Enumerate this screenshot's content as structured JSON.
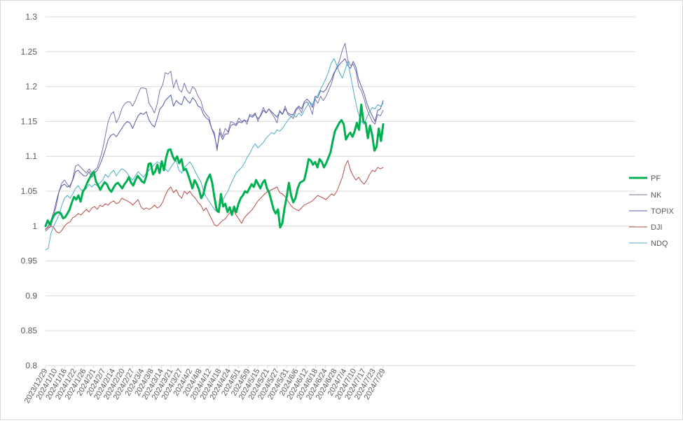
{
  "chart_data": {
    "type": "line",
    "title": "",
    "xlabel": "",
    "ylabel": "",
    "ylim": [
      0.8,
      1.3
    ],
    "y_ticks": [
      "0.8",
      "0.85",
      "0.9",
      "0.95",
      "1",
      "1.05",
      "1.1",
      "1.15",
      "1.2",
      "1.25",
      "1.3"
    ],
    "grid": "horizontal",
    "legend_position": "right",
    "x_tick_labels": [
      "2023/12/29",
      "2024/1/10",
      "2024/1/16",
      "2024/1/22",
      "2024/1/26",
      "2024/2/1",
      "2024/2/7",
      "2024/2/14",
      "2024/2/20",
      "2024/2/27",
      "2024/3/4",
      "2024/3/8",
      "2024/3/14",
      "2024/3/21",
      "2024/3/27",
      "2024/4/2",
      "2024/4/8",
      "2024/4/12",
      "2024/4/18",
      "2024/4/24",
      "2024/5/1",
      "2024/5/9",
      "2024/5/15",
      "2024/5/21",
      "2024/5/27",
      "2024/5/31",
      "2024/6/6",
      "2024/6/12",
      "2024/6/18",
      "2024/6/24",
      "2024/6/28",
      "2024/7/4",
      "2024/7/10",
      "2024/7/17",
      "2024/7/23",
      "2024/7/29"
    ],
    "series": [
      {
        "name": "PF",
        "color": "#00b050",
        "width": 3,
        "values": [
          1.0,
          1.008,
          1.002,
          1.01,
          1.016,
          1.019,
          1.02,
          1.018,
          1.011,
          1.013,
          1.018,
          1.024,
          1.034,
          1.042,
          1.038,
          1.044,
          1.035,
          1.049,
          1.054,
          1.062,
          1.068,
          1.074,
          1.078,
          1.064,
          1.058,
          1.052,
          1.058,
          1.063,
          1.06,
          1.053,
          1.049,
          1.055,
          1.06,
          1.062,
          1.058,
          1.054,
          1.06,
          1.064,
          1.07,
          1.062,
          1.058,
          1.066,
          1.072,
          1.068,
          1.064,
          1.062,
          1.072,
          1.089,
          1.09,
          1.074,
          1.078,
          1.088,
          1.076,
          1.093,
          1.08,
          1.098,
          1.109,
          1.11,
          1.1,
          1.094,
          1.1,
          1.09,
          1.096,
          1.08,
          1.082,
          1.074,
          1.064,
          1.054,
          1.066,
          1.06,
          1.052,
          1.04,
          1.046,
          1.06,
          1.068,
          1.074,
          1.062,
          1.042,
          1.024,
          1.02,
          1.046,
          1.028,
          1.032,
          1.02,
          1.027,
          1.016,
          1.028,
          1.02,
          1.032,
          1.04,
          1.044,
          1.05,
          1.048,
          1.054,
          1.06,
          1.056,
          1.066,
          1.06,
          1.054,
          1.062,
          1.066,
          1.054,
          1.048,
          1.036,
          1.024,
          1.018,
          1.024,
          0.998,
          1.004,
          1.026,
          1.042,
          1.062,
          1.044,
          1.034,
          1.04,
          1.054,
          1.062,
          1.064,
          1.066,
          1.08,
          1.096,
          1.094,
          1.088,
          1.092,
          1.084,
          1.096,
          1.092,
          1.084,
          1.09,
          1.098,
          1.106,
          1.122,
          1.136,
          1.142,
          1.148,
          1.152,
          1.146,
          1.124,
          1.13,
          1.134,
          1.128,
          1.136,
          1.148,
          1.138,
          1.174,
          1.15,
          1.148,
          1.126,
          1.144,
          1.13,
          1.108,
          1.114,
          1.14,
          1.122,
          1.146
        ]
      },
      {
        "name": "NK",
        "color": "#7f6faa",
        "width": 1,
        "values": [
          0.993,
          0.996,
          1.0,
          1.015,
          1.03,
          1.05,
          1.062,
          1.066,
          1.06,
          1.055,
          1.068,
          1.086,
          1.088,
          1.084,
          1.08,
          1.076,
          1.082,
          1.076,
          1.08,
          1.084,
          1.096,
          1.11,
          1.13,
          1.15,
          1.16,
          1.164,
          1.148,
          1.156,
          1.168,
          1.175,
          1.178,
          1.178,
          1.172,
          1.18,
          1.19,
          1.198,
          1.198,
          1.197,
          1.176,
          1.17,
          1.162,
          1.175,
          1.195,
          1.202,
          1.22,
          1.218,
          1.222,
          1.198,
          1.21,
          1.196,
          1.192,
          1.205,
          1.194,
          1.19,
          1.2,
          1.196,
          1.186,
          1.18,
          1.166,
          1.16,
          1.156,
          1.14,
          1.134,
          1.108,
          1.14,
          1.128,
          1.14,
          1.135,
          1.15,
          1.148,
          1.146,
          1.155,
          1.15,
          1.152,
          1.146,
          1.16,
          1.158,
          1.162,
          1.15,
          1.16,
          1.17,
          1.162,
          1.168,
          1.162,
          1.156,
          1.148,
          1.166,
          1.16,
          1.172,
          1.16,
          1.158,
          1.154,
          1.166,
          1.17,
          1.162,
          1.176,
          1.178,
          1.172,
          1.16,
          1.182,
          1.176,
          1.186,
          1.18,
          1.186,
          1.195,
          1.204,
          1.218,
          1.228,
          1.238,
          1.252,
          1.262,
          1.238,
          1.23,
          1.232,
          1.222,
          1.2,
          1.194,
          1.182,
          1.168,
          1.158,
          1.15,
          1.146,
          1.16,
          1.158,
          1.166
        ]
      },
      {
        "name": "TOPIX",
        "color": "#4f5fa8",
        "width": 1,
        "values": [
          0.995,
          1.0,
          1.008,
          1.02,
          1.036,
          1.05,
          1.058,
          1.06,
          1.056,
          1.058,
          1.066,
          1.078,
          1.08,
          1.076,
          1.072,
          1.072,
          1.078,
          1.07,
          1.076,
          1.08,
          1.088,
          1.098,
          1.11,
          1.124,
          1.13,
          1.132,
          1.128,
          1.134,
          1.14,
          1.146,
          1.15,
          1.148,
          1.14,
          1.15,
          1.158,
          1.162,
          1.16,
          1.164,
          1.152,
          1.146,
          1.142,
          1.154,
          1.168,
          1.172,
          1.18,
          1.184,
          1.188,
          1.172,
          1.18,
          1.176,
          1.174,
          1.186,
          1.18,
          1.176,
          1.184,
          1.18,
          1.172,
          1.17,
          1.16,
          1.155,
          1.152,
          1.14,
          1.13,
          1.112,
          1.134,
          1.124,
          1.132,
          1.132,
          1.144,
          1.146,
          1.144,
          1.15,
          1.148,
          1.152,
          1.15,
          1.158,
          1.156,
          1.16,
          1.154,
          1.158,
          1.166,
          1.162,
          1.168,
          1.164,
          1.16,
          1.156,
          1.164,
          1.16,
          1.168,
          1.162,
          1.16,
          1.16,
          1.168,
          1.172,
          1.168,
          1.178,
          1.182,
          1.178,
          1.17,
          1.186,
          1.184,
          1.194,
          1.192,
          1.196,
          1.204,
          1.21,
          1.22,
          1.226,
          1.232,
          1.236,
          1.24,
          1.23,
          1.226,
          1.236,
          1.228,
          1.21,
          1.2,
          1.19,
          1.176,
          1.166,
          1.158,
          1.15,
          1.166,
          1.168,
          1.18
        ]
      },
      {
        "name": "DJI",
        "color": "#b54d49",
        "width": 1,
        "values": [
          0.996,
          0.998,
          1.0,
          0.998,
          0.992,
          0.99,
          0.994,
          1.0,
          1.004,
          1.006,
          1.012,
          1.014,
          1.018,
          1.016,
          1.02,
          1.024,
          1.02,
          1.026,
          1.028,
          1.024,
          1.03,
          1.028,
          1.032,
          1.03,
          1.034,
          1.036,
          1.032,
          1.034,
          1.04,
          1.038,
          1.036,
          1.034,
          1.03,
          1.034,
          1.038,
          1.028,
          1.024,
          1.026,
          1.024,
          1.026,
          1.03,
          1.026,
          1.028,
          1.034,
          1.044,
          1.052,
          1.056,
          1.048,
          1.052,
          1.044,
          1.04,
          1.05,
          1.046,
          1.05,
          1.044,
          1.04,
          1.034,
          1.03,
          1.022,
          1.026,
          1.018,
          1.01,
          1.002,
          1.0,
          1.004,
          1.008,
          1.01,
          1.016,
          1.02,
          1.024,
          1.016,
          1.01,
          1.004,
          1.012,
          1.016,
          1.02,
          1.024,
          1.03,
          1.036,
          1.04,
          1.044,
          1.048,
          1.05,
          1.052,
          1.054,
          1.056,
          1.048,
          1.046,
          1.042,
          1.036,
          1.03,
          1.026,
          1.024,
          1.022,
          1.026,
          1.03,
          1.032,
          1.034,
          1.036,
          1.04,
          1.044,
          1.042,
          1.04,
          1.038,
          1.042,
          1.046,
          1.044,
          1.05,
          1.06,
          1.07,
          1.086,
          1.094,
          1.08,
          1.072,
          1.066,
          1.07,
          1.064,
          1.06,
          1.066,
          1.074,
          1.08,
          1.078,
          1.084,
          1.082,
          1.084
        ]
      },
      {
        "name": "NDQ",
        "color": "#4bacc6",
        "width": 1,
        "values": [
          0.966,
          0.968,
          0.99,
          1.0,
          1.008,
          1.016,
          1.03,
          1.04,
          1.044,
          1.04,
          1.046,
          1.054,
          1.058,
          1.052,
          1.05,
          1.054,
          1.06,
          1.056,
          1.06,
          1.058,
          1.062,
          1.066,
          1.074,
          1.07,
          1.076,
          1.08,
          1.072,
          1.078,
          1.082,
          1.08,
          1.076,
          1.07,
          1.066,
          1.072,
          1.078,
          1.074,
          1.07,
          1.076,
          1.08,
          1.084,
          1.088,
          1.092,
          1.09,
          1.086,
          1.082,
          1.078,
          1.084,
          1.09,
          1.094,
          1.08,
          1.076,
          1.084,
          1.088,
          1.092,
          1.086,
          1.078,
          1.07,
          1.064,
          1.05,
          1.042,
          1.036,
          1.03,
          1.024,
          1.02,
          1.03,
          1.036,
          1.044,
          1.05,
          1.06,
          1.068,
          1.076,
          1.08,
          1.084,
          1.09,
          1.098,
          1.104,
          1.112,
          1.118,
          1.112,
          1.116,
          1.12,
          1.126,
          1.13,
          1.134,
          1.132,
          1.138,
          1.136,
          1.14,
          1.146,
          1.152,
          1.156,
          1.16,
          1.156,
          1.162,
          1.158,
          1.166,
          1.172,
          1.178,
          1.174,
          1.182,
          1.188,
          1.196,
          1.204,
          1.212,
          1.222,
          1.234,
          1.24,
          1.23,
          1.22,
          1.212,
          1.224,
          1.236,
          1.216,
          1.196,
          1.176,
          1.16,
          1.15,
          1.146,
          1.156,
          1.164,
          1.17,
          1.168,
          1.174,
          1.172,
          1.176
        ]
      }
    ]
  }
}
